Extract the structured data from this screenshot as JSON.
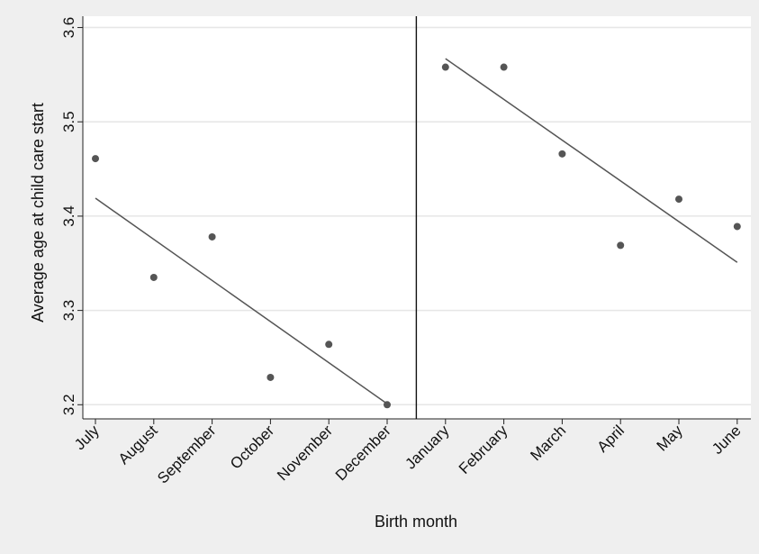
{
  "chart_data": {
    "type": "scatter",
    "title": "",
    "xlabel": "Birth month",
    "ylabel": "Average age at child care start",
    "categories": [
      "July",
      "August",
      "September",
      "October",
      "November",
      "December",
      "January",
      "February",
      "March",
      "April",
      "May",
      "June"
    ],
    "series": [
      {
        "values": [
          3.461,
          3.335,
          3.378,
          3.229,
          3.264,
          3.2,
          3.558,
          3.558,
          3.466,
          3.369,
          3.418,
          3.389
        ]
      }
    ],
    "fit_lines": [
      {
        "x_from": "July",
        "x_to": "December",
        "y_from": 3.419,
        "y_to": 3.201
      },
      {
        "x_from": "January",
        "x_to": "June",
        "y_from": 3.567,
        "y_to": 3.351
      }
    ],
    "cutoff_between": [
      "December",
      "January"
    ],
    "ylim": [
      3.185,
      3.612
    ],
    "yticks": [
      3.2,
      3.3,
      3.4,
      3.5,
      3.6
    ],
    "ytick_labels": [
      "3.2",
      "3.3",
      "3.4",
      "3.5",
      "3.6"
    ],
    "grid": true,
    "legend": "none",
    "colors": {
      "background": "#efefef",
      "plot_background": "#ffffff",
      "marker": "#555555",
      "fit_line": "#555555",
      "gridline": "#e6e6e6",
      "axis": "#222222"
    }
  }
}
